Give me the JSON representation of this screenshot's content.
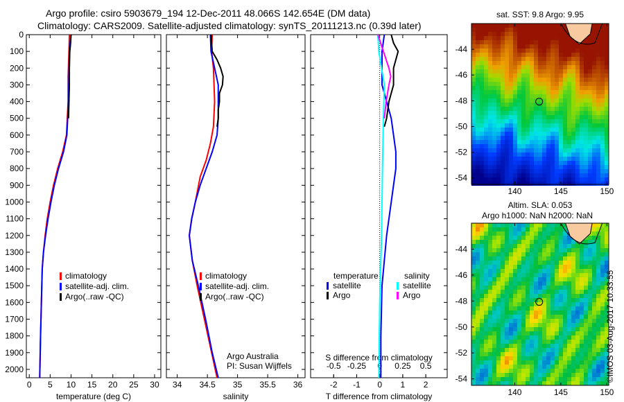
{
  "title_line1": "Argo profile: csiro 5903679_194 12-Dec-2011 48.066S 142.654E (DM data)",
  "title_line2": "Climatology: CARS2009. Satellite-adjusted climatology: synTS_20111213.nc (0.39d later)",
  "side_stamp": "©IMOS 03-Aug-2017 10:33:55",
  "colors": {
    "climatology": "#ff0000",
    "satellite": "#0000ff",
    "argo": "#000000",
    "sal_satellite": "#00ffff",
    "sal_argo": "#ff00ff"
  },
  "chart_data": [
    {
      "type": "line",
      "name": "temperature",
      "xlabel": "temperature (deg C)",
      "xlim": [
        -0.7,
        31.5
      ],
      "ylim": [
        0,
        2050
      ],
      "xticks": [
        0,
        5,
        10,
        15,
        20,
        25,
        30
      ],
      "yticks": [
        0,
        100,
        200,
        300,
        400,
        500,
        600,
        700,
        800,
        900,
        1000,
        1100,
        1200,
        1300,
        1400,
        1500,
        1600,
        1700,
        1800,
        1900,
        2000
      ],
      "legend": [
        "climatology",
        "satellite-adj. clim.",
        "Argo(..raw -QC)"
      ],
      "series": [
        {
          "name": "climatology",
          "color": "#ff0000",
          "depth": [
            0,
            100,
            250,
            400,
            600,
            700,
            800,
            900,
            1000,
            1100,
            1200,
            1300,
            1400,
            1600,
            1800,
            2050
          ],
          "values": [
            9.6,
            9.5,
            9.3,
            9.3,
            8.9,
            8.0,
            6.8,
            5.8,
            5.0,
            4.3,
            3.8,
            3.4,
            3.1,
            2.9,
            2.7,
            2.5
          ]
        },
        {
          "name": "satellite-adj. clim.",
          "color": "#0000ff",
          "depth": [
            0,
            50,
            100,
            250,
            400,
            600,
            700,
            800,
            900,
            1000,
            1100,
            1200,
            1300,
            1400,
            1600,
            1800,
            2050
          ],
          "values": [
            10.0,
            9.8,
            9.6,
            9.5,
            9.4,
            9.0,
            8.2,
            7.0,
            6.0,
            5.2,
            4.5,
            3.9,
            3.4,
            3.1,
            2.9,
            2.7,
            2.5
          ]
        },
        {
          "name": "Argo(..raw -QC)",
          "color": "#000000",
          "depth": [
            0,
            50,
            100,
            200,
            300,
            400,
            500
          ],
          "values": [
            10.0,
            9.9,
            9.7,
            9.6,
            9.6,
            9.5,
            9.4
          ]
        }
      ]
    },
    {
      "type": "line",
      "name": "salinity",
      "xlabel": "salinity",
      "xlim": [
        33.82,
        36.12
      ],
      "ylim": [
        0,
        2050
      ],
      "xticks": [
        34,
        34.5,
        35,
        35.5,
        36
      ],
      "legend": [
        "climatology",
        "satellite-adj. clim.",
        "Argo(..raw -QC)"
      ],
      "annotation": [
        "Argo Australia",
        "PI: Susan Wijffels"
      ],
      "series": [
        {
          "name": "climatology",
          "color": "#ff0000",
          "depth": [
            0,
            100,
            200,
            400,
            550,
            650,
            750,
            850,
            1000,
            1100,
            1200,
            1350,
            1500,
            1700,
            1900,
            2050
          ],
          "values": [
            34.58,
            34.57,
            34.6,
            34.62,
            34.6,
            34.55,
            34.48,
            34.38,
            34.3,
            34.24,
            34.2,
            34.25,
            34.33,
            34.45,
            34.57,
            34.66
          ]
        },
        {
          "name": "satellite-adj. clim.",
          "color": "#0000ff",
          "depth": [
            0,
            100,
            200,
            300,
            400,
            500,
            600,
            700,
            800,
            900,
            1000,
            1100,
            1200,
            1350,
            1500,
            1700,
            1900,
            2050
          ],
          "values": [
            34.55,
            34.56,
            34.62,
            34.68,
            34.68,
            34.68,
            34.66,
            34.58,
            34.48,
            34.38,
            34.3,
            34.24,
            34.2,
            34.25,
            34.35,
            34.47,
            34.58,
            34.68
          ]
        },
        {
          "name": "Argo(..raw -QC)",
          "color": "#000000",
          "depth": [
            0,
            100,
            150,
            200,
            250,
            300,
            350,
            400,
            450,
            500,
            550
          ],
          "values": [
            34.56,
            34.58,
            34.66,
            34.72,
            34.76,
            34.75,
            34.7,
            34.7,
            34.68,
            34.68,
            34.66
          ]
        }
      ]
    },
    {
      "type": "line",
      "name": "difference",
      "xlabel": "T difference from climatology",
      "x2label": "S difference from climatology",
      "xlim": [
        -3,
        2.93
      ],
      "ylim": [
        0,
        2050
      ],
      "xticks": [
        -2,
        -1,
        0,
        1,
        2
      ],
      "x2ticks": [
        -0.5,
        -0.25,
        0,
        0.25,
        0.5
      ],
      "legend": {
        "temperature": [
          "satellite",
          "Argo"
        ],
        "salinity": [
          "satellite",
          "Argo"
        ]
      },
      "legend_headers": [
        "temperature",
        "salinity"
      ],
      "series": [
        {
          "name": "T satellite",
          "color": "#0000ff",
          "depth": [
            0,
            100,
            300,
            500,
            600,
            700,
            800,
            900,
            1000,
            1200,
            1500,
            1800,
            2050
          ],
          "values": [
            0.2,
            0.1,
            0.1,
            0.5,
            0.6,
            0.7,
            0.7,
            0.6,
            0.5,
            0.3,
            0.1,
            0.05,
            0.05
          ]
        },
        {
          "name": "T Argo",
          "color": "#000000",
          "depth": [
            0,
            50,
            100,
            200,
            300,
            400,
            500,
            550
          ],
          "values": [
            0.5,
            0.6,
            0.8,
            0.6,
            0.6,
            0.4,
            0.3,
            0.2
          ]
        },
        {
          "name": "S satellite",
          "color": "#00ffff",
          "depth": [
            0,
            100,
            300,
            500,
            800,
            1200,
            1600,
            2050
          ],
          "values": [
            -0.02,
            -0.01,
            0.05,
            0.04,
            0.03,
            0.02,
            0,
            -0.01
          ]
        },
        {
          "name": "S Argo",
          "color": "#ff00ff",
          "depth": [
            0,
            100,
            200,
            250,
            300,
            400,
            500
          ],
          "values": [
            -0.02,
            0.04,
            0.1,
            0.12,
            0.1,
            0.07,
            0.05
          ]
        }
      ]
    }
  ],
  "maps": [
    {
      "title": "sat. SST: 9.8 Argo: 9.95",
      "lon_ticks": [
        140,
        145,
        150
      ],
      "lat_ticks": [
        -44,
        -46,
        -48,
        -50,
        -52,
        -54
      ],
      "lonlim": [
        135.3,
        150.2
      ],
      "latlim": [
        -54.5,
        -42.0
      ],
      "argo_position": [
        142.654,
        -48.066
      ]
    },
    {
      "title1": "Altim. SLA: 0.053",
      "title2": "Argo h1000: NaN h2000: NaN",
      "lon_ticks": [
        140,
        145,
        150
      ],
      "lat_ticks": [
        -44,
        -46,
        -48,
        -50,
        -52,
        -54
      ],
      "lonlim": [
        135.3,
        150.2
      ],
      "latlim": [
        -54.5,
        -42.0
      ],
      "argo_position": [
        142.654,
        -48.066
      ]
    }
  ]
}
